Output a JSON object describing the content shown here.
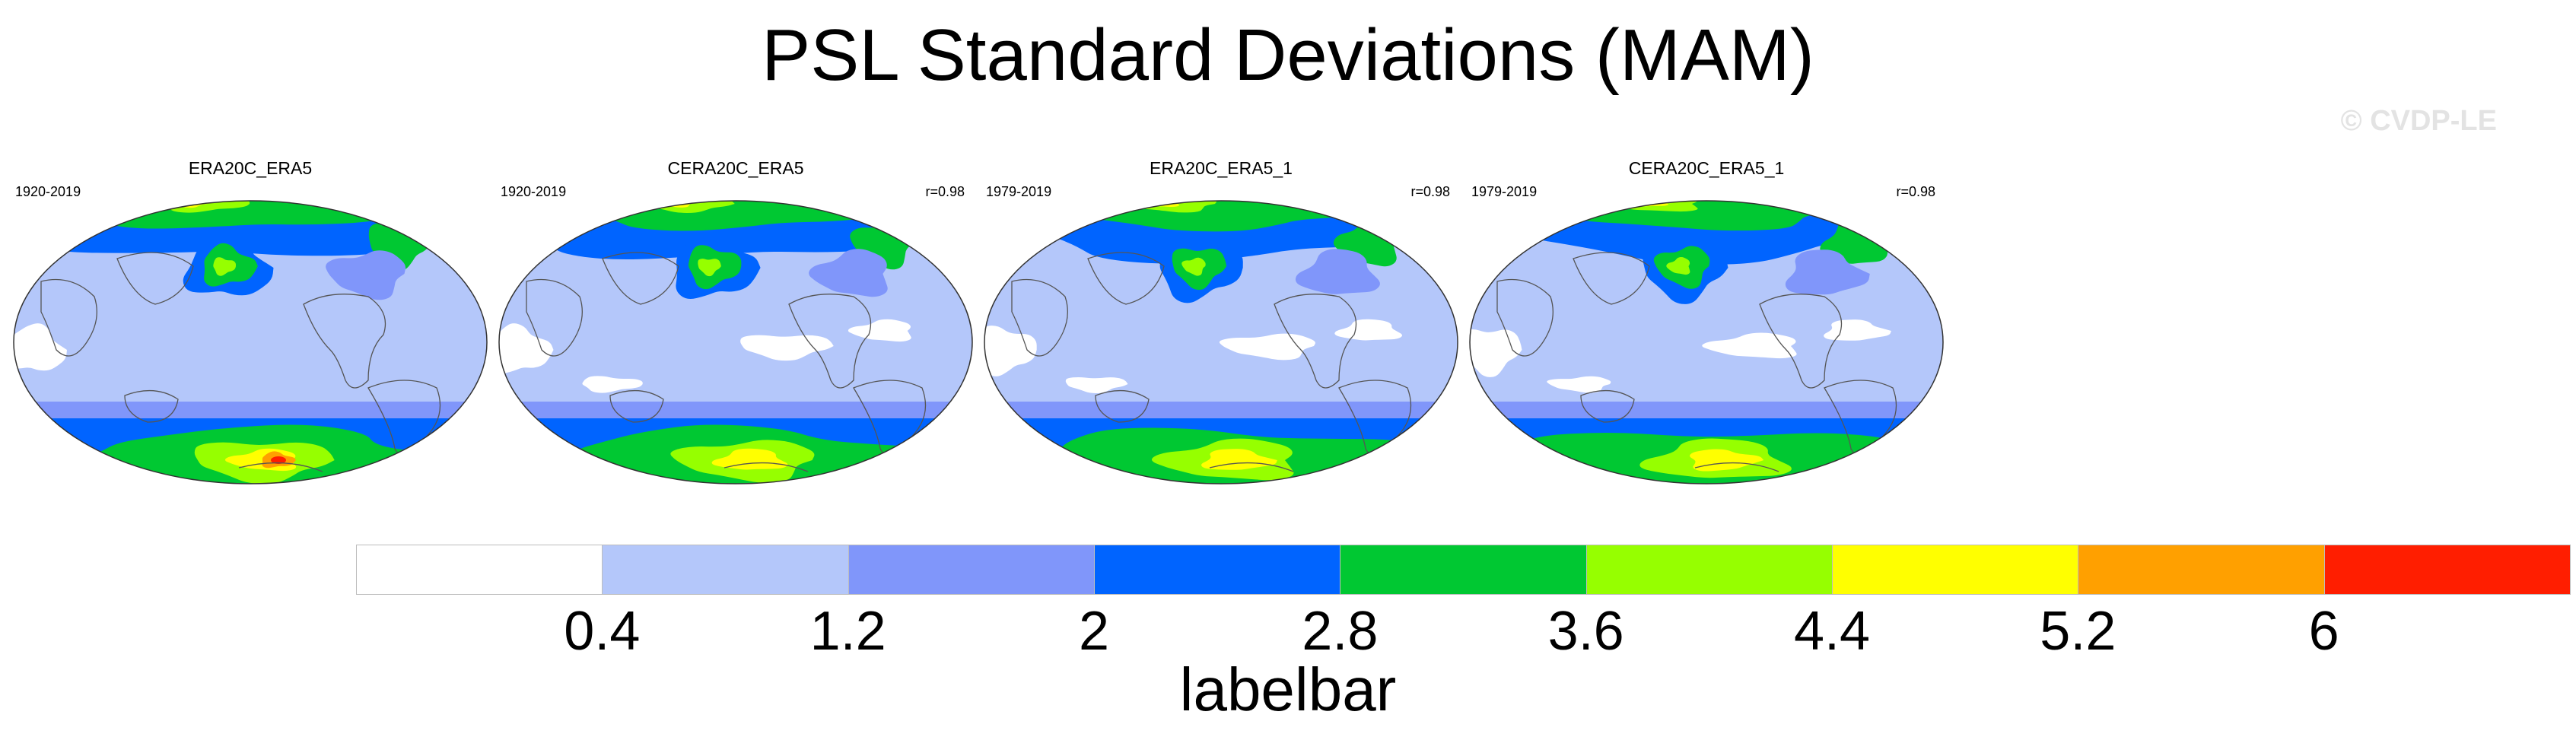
{
  "title": "PSL Standard Deviations (MAM)",
  "copyright": "© CVDP-LE",
  "panels": [
    {
      "name": "ERA20C_ERA5",
      "years": "1920-2019",
      "corr": ""
    },
    {
      "name": "CERA20C_ERA5",
      "years": "1920-2019",
      "corr": "r=0.98"
    },
    {
      "name": "ERA20C_ERA5_1",
      "years": "1979-2019",
      "corr": "r=0.98"
    },
    {
      "name": "CERA20C_ERA5_1",
      "years": "1979-2019",
      "corr": "r=0.98"
    }
  ],
  "labelbar": {
    "title": "labelbar",
    "colors": [
      "#ffffff",
      "#b4c7fa",
      "#8096fa",
      "#0064ff",
      "#00c832",
      "#96ff00",
      "#ffff00",
      "#ffa000",
      "#ff1e00"
    ],
    "levels": [
      "0.4",
      "1.2",
      "2",
      "2.8",
      "3.6",
      "4.4",
      "5.2",
      "6"
    ]
  },
  "map_colors": {
    "land": "#b4c7fa",
    "ocean_low": "#ffffff",
    "mid": "#8096fa",
    "blue": "#0064ff",
    "green": "#00c832",
    "lime": "#96ff00",
    "yellow": "#ffff00",
    "orange": "#ffa000",
    "red": "#ff1e00"
  }
}
